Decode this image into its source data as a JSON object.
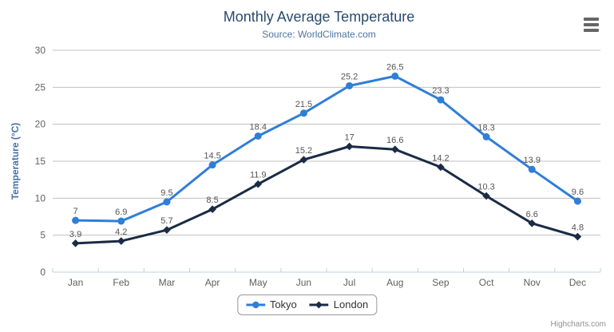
{
  "header": {
    "title": "Monthly Average Temperature",
    "subtitle": "Source: WorldClimate.com"
  },
  "export_menu": {
    "icon": "hamburger-icon"
  },
  "credits": {
    "label": "Highcharts.com"
  },
  "colors": {
    "title": "#274b6d",
    "subtitle": "#4d759e",
    "axis_labels": "#606060",
    "y_axis_title": "#4572a7",
    "grid_line": "#c0c0c0",
    "axis_line": "#c0d0e0",
    "data_label": "#555555",
    "legend_text": "#333333",
    "menu_icon": "#666666"
  },
  "chart_data": {
    "type": "line",
    "title": "Monthly Average Temperature",
    "subtitle": "Source: WorldClimate.com",
    "categories": [
      "Jan",
      "Feb",
      "Mar",
      "Apr",
      "May",
      "Jun",
      "Jul",
      "Aug",
      "Sep",
      "Oct",
      "Nov",
      "Dec"
    ],
    "series": [
      {
        "name": "Tokyo",
        "color": "#2f7ed8",
        "marker": "circle",
        "values": [
          7,
          6.9,
          9.5,
          14.5,
          18.4,
          21.5,
          25.2,
          26.5,
          23.3,
          18.3,
          13.9,
          9.6
        ]
      },
      {
        "name": "London",
        "color": "#1a2b45",
        "marker": "diamond",
        "values": [
          3.9,
          4.2,
          5.7,
          8.5,
          11.9,
          15.2,
          17,
          16.6,
          14.2,
          10.3,
          6.6,
          4.8
        ]
      }
    ],
    "xlabel": "",
    "ylabel": "Temperature (°C)",
    "ylim": [
      0,
      30
    ],
    "ytick_interval": 5,
    "grid": true,
    "legend_position": "bottom",
    "data_labels": true
  }
}
